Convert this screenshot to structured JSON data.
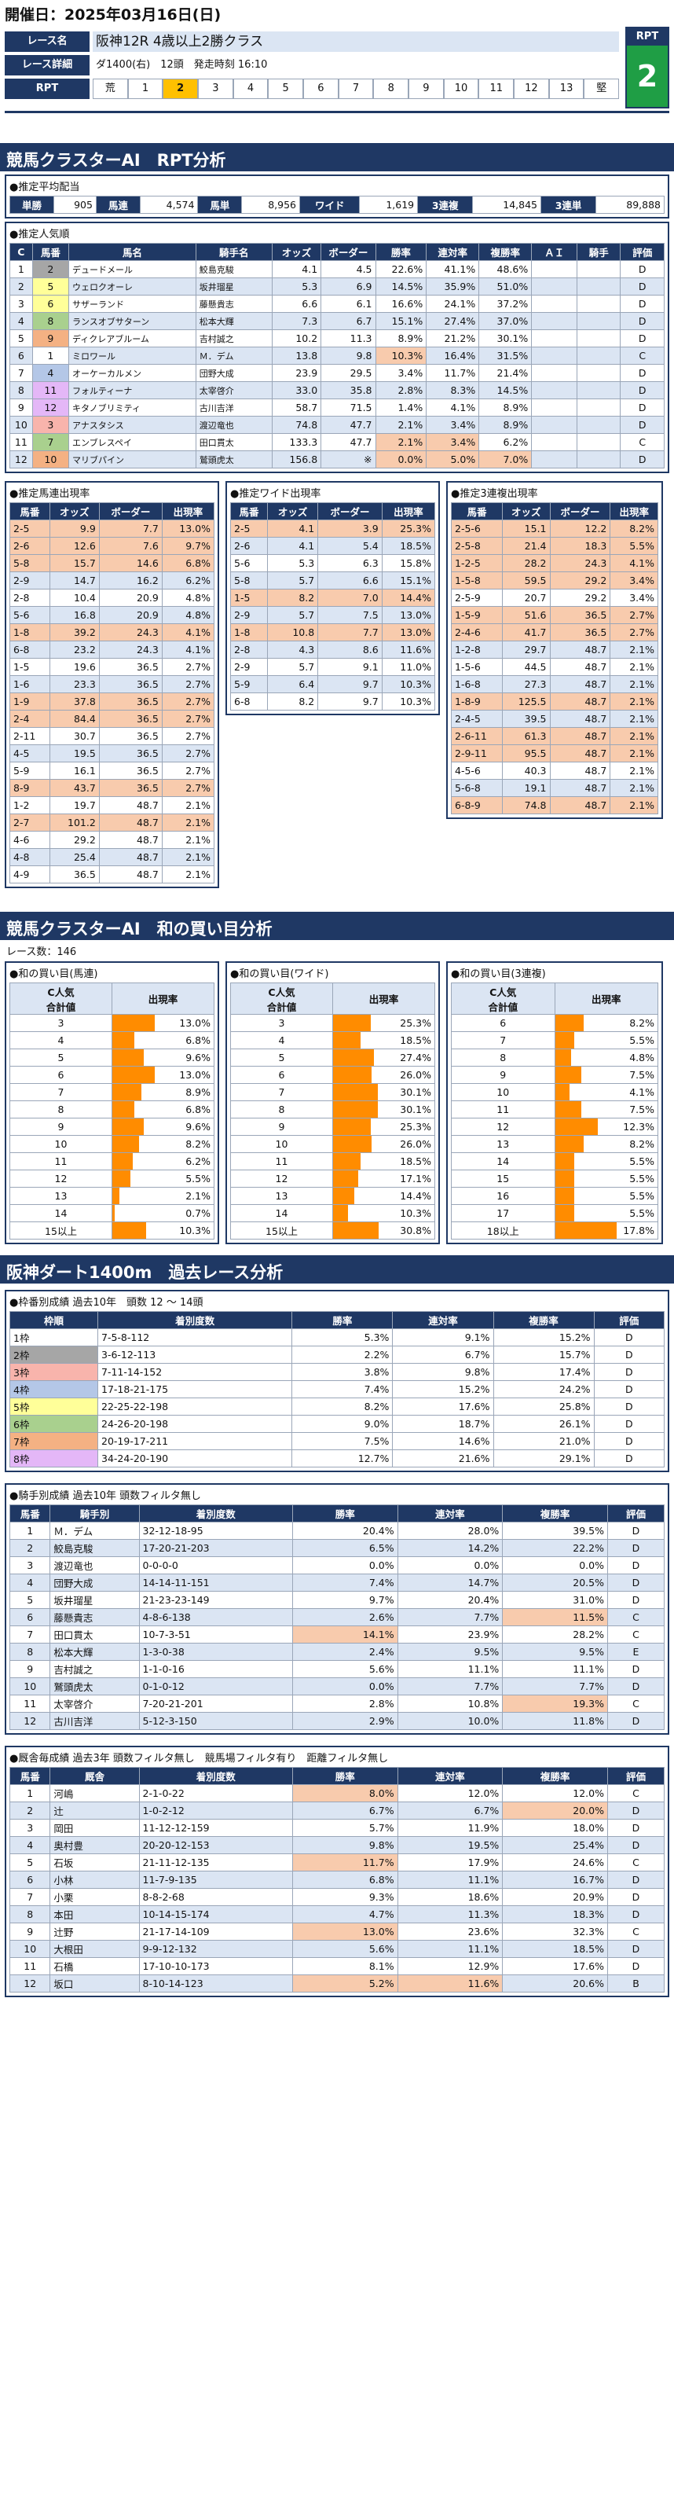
{
  "header": "開催日：2025年03月16日(日)",
  "race": {
    "name_label": "レース名",
    "name": "阪神12R 4歳以上2勝クラス",
    "detail_label": "レース詳細",
    "detail": "ダ1400(右)　12頭　発走時刻 16:10",
    "rpt_label": "RPT",
    "rpt_scale": [
      "荒",
      "1",
      "2",
      "3",
      "4",
      "5",
      "6",
      "7",
      "8",
      "9",
      "10",
      "11",
      "12",
      "13",
      "堅"
    ],
    "rpt_value": "2",
    "rpt_value_label": "RPT"
  },
  "s1_title": "競馬クラスターAI　RPT分析",
  "avg_odds": {
    "title": "●推定平均配当",
    "cells": [
      "単勝",
      "905",
      "馬連",
      "4,574",
      "馬単",
      "8,956",
      "ワイド",
      "1,619",
      "3連複",
      "14,845",
      "3連単",
      "89,888"
    ]
  },
  "pop": {
    "title": "●推定人気順",
    "headers": [
      "C",
      "馬番",
      "馬名",
      "騎手名",
      "オッズ",
      "ボーダー",
      "勝率",
      "連対率",
      "複勝率",
      "ＡＩ",
      "騎手",
      "評価"
    ],
    "rows": [
      [
        "1",
        "2",
        "デュードメール",
        "鮫島克駿",
        "4.1",
        "4.5",
        "22.6%",
        "41.1%",
        "48.6%",
        "",
        "",
        "D"
      ],
      [
        "2",
        "5",
        "ウェロクオーレ",
        "坂井瑠星",
        "5.3",
        "6.9",
        "14.5%",
        "35.9%",
        "51.0%",
        "",
        "",
        "D"
      ],
      [
        "3",
        "6",
        "サザーランド",
        "藤懸貴志",
        "6.6",
        "6.1",
        "16.6%",
        "24.1%",
        "37.2%",
        "",
        "",
        "D"
      ],
      [
        "4",
        "8",
        "ランスオブサターン",
        "松本大輝",
        "7.3",
        "6.7",
        "15.1%",
        "27.4%",
        "37.0%",
        "",
        "",
        "D"
      ],
      [
        "5",
        "9",
        "ディクレアブルーム",
        "吉村誠之",
        "10.2",
        "11.3",
        "8.9%",
        "21.2%",
        "30.1%",
        "",
        "",
        "D"
      ],
      [
        "6",
        "1",
        "ミロワール",
        "Ｍ．デム",
        "13.8",
        "9.8",
        "10.3%",
        "16.4%",
        "31.5%",
        "",
        "",
        "C"
      ],
      [
        "7",
        "4",
        "オーケーカルメン",
        "団野大成",
        "23.9",
        "29.5",
        "3.4%",
        "11.7%",
        "21.4%",
        "",
        "",
        "D"
      ],
      [
        "8",
        "11",
        "フォルティーナ",
        "太宰啓介",
        "33.0",
        "35.8",
        "2.8%",
        "8.3%",
        "14.5%",
        "",
        "",
        "D"
      ],
      [
        "9",
        "12",
        "キタノブリミティ",
        "古川吉洋",
        "58.7",
        "71.5",
        "1.4%",
        "4.1%",
        "8.9%",
        "",
        "",
        "D"
      ],
      [
        "10",
        "3",
        "アナスタシス",
        "渡辺竜也",
        "74.8",
        "47.7",
        "2.1%",
        "3.4%",
        "8.9%",
        "",
        "",
        "D"
      ],
      [
        "11",
        "7",
        "エンブレスペイ",
        "田口貫太",
        "133.3",
        "47.7",
        "2.1%",
        "3.4%",
        "6.2%",
        "",
        "",
        "C"
      ],
      [
        "12",
        "10",
        "マリブパイン",
        "鷲頭虎太",
        "156.8",
        "※",
        "0.0%",
        "5.0%",
        "7.0%",
        "",
        "",
        "D"
      ]
    ]
  },
  "umaren": {
    "title": "●推定馬連出現率",
    "headers": [
      "馬番",
      "オッズ",
      "ボーダー",
      "出現率"
    ],
    "rows": [
      [
        "2-5",
        "9.9",
        "7.7",
        "13.0%"
      ],
      [
        "2-6",
        "12.6",
        "7.6",
        "9.7%"
      ],
      [
        "5-8",
        "15.7",
        "14.6",
        "6.8%"
      ],
      [
        "2-9",
        "14.7",
        "16.2",
        "6.2%"
      ],
      [
        "2-8",
        "10.4",
        "20.9",
        "4.8%"
      ],
      [
        "5-6",
        "16.8",
        "20.9",
        "4.8%"
      ],
      [
        "1-8",
        "39.2",
        "24.3",
        "4.1%"
      ],
      [
        "6-8",
        "23.2",
        "24.3",
        "4.1%"
      ],
      [
        "1-5",
        "19.6",
        "36.5",
        "2.7%"
      ],
      [
        "1-6",
        "23.3",
        "36.5",
        "2.7%"
      ],
      [
        "1-9",
        "37.8",
        "36.5",
        "2.7%"
      ],
      [
        "2-4",
        "84.4",
        "36.5",
        "2.7%"
      ],
      [
        "2-11",
        "30.7",
        "36.5",
        "2.7%"
      ],
      [
        "4-5",
        "19.5",
        "36.5",
        "2.7%"
      ],
      [
        "5-9",
        "16.1",
        "36.5",
        "2.7%"
      ],
      [
        "8-9",
        "43.7",
        "36.5",
        "2.7%"
      ],
      [
        "1-2",
        "19.7",
        "48.7",
        "2.1%"
      ],
      [
        "2-7",
        "101.2",
        "48.7",
        "2.1%"
      ],
      [
        "4-6",
        "29.2",
        "48.7",
        "2.1%"
      ],
      [
        "4-8",
        "25.4",
        "48.7",
        "2.1%"
      ],
      [
        "4-9",
        "36.5",
        "48.7",
        "2.1%"
      ]
    ]
  },
  "wide": {
    "title": "●推定ワイド出現率",
    "headers": [
      "馬番",
      "オッズ",
      "ボーダー",
      "出現率"
    ],
    "rows": [
      [
        "2-5",
        "4.1",
        "3.9",
        "25.3%"
      ],
      [
        "2-6",
        "4.1",
        "5.4",
        "18.5%"
      ],
      [
        "5-6",
        "5.3",
        "6.3",
        "15.8%"
      ],
      [
        "5-8",
        "5.7",
        "6.6",
        "15.1%"
      ],
      [
        "1-5",
        "8.2",
        "7.0",
        "14.4%"
      ],
      [
        "2-9",
        "5.7",
        "7.5",
        "13.0%"
      ],
      [
        "1-8",
        "10.8",
        "7.7",
        "13.0%"
      ],
      [
        "2-8",
        "4.3",
        "8.6",
        "11.6%"
      ],
      [
        "2-9",
        "5.7",
        "9.1",
        "11.0%"
      ],
      [
        "5-9",
        "6.4",
        "9.7",
        "10.3%"
      ],
      [
        "6-8",
        "8.2",
        "9.7",
        "10.3%"
      ]
    ]
  },
  "trio": {
    "title": "●推定3連複出現率",
    "headers": [
      "馬番",
      "オッズ",
      "ボーダー",
      "出現率"
    ],
    "rows": [
      [
        "2-5-6",
        "15.1",
        "12.2",
        "8.2%"
      ],
      [
        "2-5-8",
        "21.4",
        "18.3",
        "5.5%"
      ],
      [
        "1-2-5",
        "28.2",
        "24.3",
        "4.1%"
      ],
      [
        "1-5-8",
        "59.5",
        "29.2",
        "3.4%"
      ],
      [
        "2-5-9",
        "20.7",
        "29.2",
        "3.4%"
      ],
      [
        "1-5-9",
        "51.6",
        "36.5",
        "2.7%"
      ],
      [
        "2-4-6",
        "41.7",
        "36.5",
        "2.7%"
      ],
      [
        "1-2-8",
        "29.7",
        "48.7",
        "2.1%"
      ],
      [
        "1-5-6",
        "44.5",
        "48.7",
        "2.1%"
      ],
      [
        "1-6-8",
        "27.3",
        "48.7",
        "2.1%"
      ],
      [
        "1-8-9",
        "125.5",
        "48.7",
        "2.1%"
      ],
      [
        "2-4-5",
        "39.5",
        "48.7",
        "2.1%"
      ],
      [
        "2-6-11",
        "61.3",
        "48.7",
        "2.1%"
      ],
      [
        "2-9-11",
        "95.5",
        "48.7",
        "2.1%"
      ],
      [
        "4-5-6",
        "40.3",
        "48.7",
        "2.1%"
      ],
      [
        "5-6-8",
        "19.1",
        "48.7",
        "2.1%"
      ],
      [
        "6-8-9",
        "74.8",
        "48.7",
        "2.1%"
      ]
    ]
  },
  "s2_title": "競馬クラスターAI　和の買い目分析",
  "race_count": "レース数：146",
  "sum_umaren": {
    "title": "●和の買い目(馬連)",
    "h1": "C人気",
    "h1b": "合計値",
    "h2": "出現率",
    "rows": [
      [
        "3",
        "13.0%"
      ],
      [
        "4",
        "6.8%"
      ],
      [
        "5",
        "9.6%"
      ],
      [
        "6",
        "13.0%"
      ],
      [
        "7",
        "8.9%"
      ],
      [
        "8",
        "6.8%"
      ],
      [
        "9",
        "9.6%"
      ],
      [
        "10",
        "8.2%"
      ],
      [
        "11",
        "6.2%"
      ],
      [
        "12",
        "5.5%"
      ],
      [
        "13",
        "2.1%"
      ],
      [
        "14",
        "0.7%"
      ],
      [
        "15以上",
        "10.3%"
      ]
    ],
    "fill": [
      0.42,
      0.22,
      0.31,
      0.42,
      0.29,
      0.22,
      0.31,
      0.26,
      0.2,
      0.18,
      0.07,
      0.02,
      0.33
    ]
  },
  "sum_wide": {
    "title": "●和の買い目(ワイド)",
    "h1": "C人気",
    "h1b": "合計値",
    "h2": "出現率",
    "rows": [
      [
        "3",
        "25.3%"
      ],
      [
        "4",
        "18.5%"
      ],
      [
        "5",
        "27.4%"
      ],
      [
        "6",
        "26.0%"
      ],
      [
        "7",
        "30.1%"
      ],
      [
        "8",
        "30.1%"
      ],
      [
        "9",
        "25.3%"
      ],
      [
        "10",
        "26.0%"
      ],
      [
        "11",
        "18.5%"
      ],
      [
        "12",
        "17.1%"
      ],
      [
        "13",
        "14.4%"
      ],
      [
        "14",
        "10.3%"
      ],
      [
        "15以上",
        "30.8%"
      ]
    ],
    "fill": [
      0.37,
      0.27,
      0.4,
      0.38,
      0.44,
      0.44,
      0.37,
      0.38,
      0.27,
      0.25,
      0.21,
      0.15,
      0.45
    ]
  },
  "sum_trio": {
    "title": "●和の買い目(3連複)",
    "h1": "C人気",
    "h1b": "合計値",
    "h2": "出現率",
    "rows": [
      [
        "6",
        "8.2%"
      ],
      [
        "7",
        "5.5%"
      ],
      [
        "8",
        "4.8%"
      ],
      [
        "9",
        "7.5%"
      ],
      [
        "10",
        "4.1%"
      ],
      [
        "11",
        "7.5%"
      ],
      [
        "12",
        "12.3%"
      ],
      [
        "13",
        "8.2%"
      ],
      [
        "14",
        "5.5%"
      ],
      [
        "15",
        "5.5%"
      ],
      [
        "16",
        "5.5%"
      ],
      [
        "17",
        "5.5%"
      ],
      [
        "18以上",
        "17.8%"
      ]
    ],
    "fill": [
      0.28,
      0.19,
      0.16,
      0.26,
      0.14,
      0.26,
      0.42,
      0.28,
      0.19,
      0.19,
      0.19,
      0.19,
      0.6
    ]
  },
  "s3_title": "阪神ダート1400m　過去レース分析",
  "waku": {
    "title": "●枠番別成績 過去10年　頭数 12 ～ 14頭",
    "headers": [
      "枠順",
      "着別度数",
      "勝率",
      "連対率",
      "複勝率",
      "評価"
    ],
    "rows": [
      [
        "1枠",
        "7-5-8-112",
        "5.3%",
        "9.1%",
        "15.2%",
        "D"
      ],
      [
        "2枠",
        "3-6-12-113",
        "2.2%",
        "6.7%",
        "15.7%",
        "D"
      ],
      [
        "3枠",
        "7-11-14-152",
        "3.8%",
        "9.8%",
        "17.4%",
        "D"
      ],
      [
        "4枠",
        "17-18-21-175",
        "7.4%",
        "15.2%",
        "24.2%",
        "D"
      ],
      [
        "5枠",
        "22-25-22-198",
        "8.2%",
        "17.6%",
        "25.8%",
        "D"
      ],
      [
        "6枠",
        "24-26-20-198",
        "9.0%",
        "18.7%",
        "26.1%",
        "D"
      ],
      [
        "7枠",
        "20-19-17-211",
        "7.5%",
        "14.6%",
        "21.0%",
        "D"
      ],
      [
        "8枠",
        "34-24-20-190",
        "12.7%",
        "21.6%",
        "29.1%",
        "D"
      ]
    ],
    "colors": [
      "#ffffff",
      "#a6a6a6",
      "#f8b4ac",
      "#b4c7e7",
      "#ffff99",
      "#a9d08e",
      "#f4b183",
      "#e4b7f7"
    ]
  },
  "jockey": {
    "title": "●騎手別成績 過去10年 頭数フィルタ無し",
    "headers": [
      "馬番",
      "騎手別",
      "着別度数",
      "勝率",
      "連対率",
      "複勝率",
      "評価"
    ],
    "rows": [
      [
        "1",
        "Ｍ．デム",
        "32-12-18-95",
        "20.4%",
        "28.0%",
        "39.5%",
        "D"
      ],
      [
        "2",
        "鮫島克駿",
        "17-20-21-203",
        "6.5%",
        "14.2%",
        "22.2%",
        "D"
      ],
      [
        "3",
        "渡辺竜也",
        "0-0-0-0",
        "0.0%",
        "0.0%",
        "0.0%",
        "D"
      ],
      [
        "4",
        "団野大成",
        "14-14-11-151",
        "7.4%",
        "14.7%",
        "20.5%",
        "D"
      ],
      [
        "5",
        "坂井瑠星",
        "21-23-23-149",
        "9.7%",
        "20.4%",
        "31.0%",
        "D"
      ],
      [
        "6",
        "藤懸貴志",
        "4-8-6-138",
        "2.6%",
        "7.7%",
        "11.5%",
        "C"
      ],
      [
        "7",
        "田口貫太",
        "10-7-3-51",
        "14.1%",
        "23.9%",
        "28.2%",
        "C"
      ],
      [
        "8",
        "松本大輝",
        "1-3-0-38",
        "2.4%",
        "9.5%",
        "9.5%",
        "E"
      ],
      [
        "9",
        "吉村誠之",
        "1-1-0-16",
        "5.6%",
        "11.1%",
        "11.1%",
        "D"
      ],
      [
        "10",
        "鷲頭虎太",
        "0-1-0-12",
        "0.0%",
        "7.7%",
        "7.7%",
        "D"
      ],
      [
        "11",
        "太宰啓介",
        "7-20-21-201",
        "2.8%",
        "10.8%",
        "19.3%",
        "C"
      ],
      [
        "12",
        "古川吉洋",
        "5-12-3-150",
        "2.9%",
        "10.0%",
        "11.8%",
        "D"
      ]
    ]
  },
  "trainer": {
    "title": "●厩舎毎成績 過去3年 頭数フィルタ無し　競馬場フィルタ有り　距離フィルタ無し",
    "headers": [
      "馬番",
      "厩舎",
      "着別度数",
      "勝率",
      "連対率",
      "複勝率",
      "評価"
    ],
    "rows": [
      [
        "1",
        "河嶋",
        "2-1-0-22",
        "8.0%",
        "12.0%",
        "12.0%",
        "C"
      ],
      [
        "2",
        "辻",
        "1-0-2-12",
        "6.7%",
        "6.7%",
        "20.0%",
        "D"
      ],
      [
        "3",
        "岡田",
        "11-12-12-159",
        "5.7%",
        "11.9%",
        "18.0%",
        "D"
      ],
      [
        "4",
        "奥村豊",
        "20-20-12-153",
        "9.8%",
        "19.5%",
        "25.4%",
        "D"
      ],
      [
        "5",
        "石坂",
        "21-11-12-135",
        "11.7%",
        "17.9%",
        "24.6%",
        "C"
      ],
      [
        "6",
        "小林",
        "11-7-9-135",
        "6.8%",
        "11.1%",
        "16.7%",
        "D"
      ],
      [
        "7",
        "小栗",
        "8-8-2-68",
        "9.3%",
        "18.6%",
        "20.9%",
        "D"
      ],
      [
        "8",
        "本田",
        "10-14-15-174",
        "4.7%",
        "11.3%",
        "18.3%",
        "D"
      ],
      [
        "9",
        "辻野",
        "21-17-14-109",
        "13.0%",
        "23.6%",
        "32.3%",
        "C"
      ],
      [
        "10",
        "大根田",
        "9-9-12-132",
        "5.6%",
        "11.1%",
        "18.5%",
        "D"
      ],
      [
        "11",
        "石橋",
        "17-10-10-173",
        "8.1%",
        "12.9%",
        "17.6%",
        "D"
      ],
      [
        "12",
        "坂口",
        "8-10-14-123",
        "5.2%",
        "11.6%",
        "20.6%",
        "B"
      ]
    ]
  }
}
